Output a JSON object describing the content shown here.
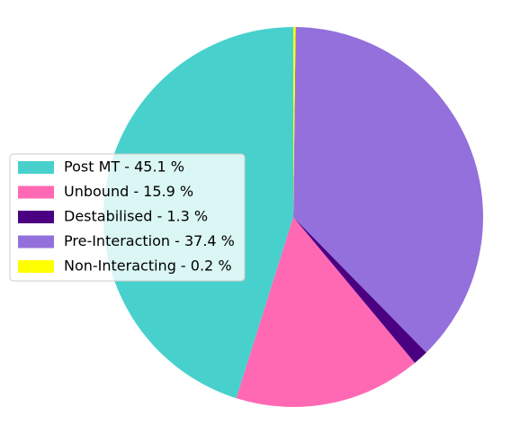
{
  "chart_data": {
    "type": "pie",
    "categories": [
      "Post MT - 45.1 %",
      "Unbound - 15.9 %",
      "Destabilised - 1.3 %",
      "Pre-Interaction - 37.4 %",
      "Non-Interacting - 0.2 %"
    ],
    "values": [
      45.1,
      15.9,
      1.3,
      37.4,
      0.2
    ],
    "colors": [
      "#48d1cc",
      "#ff69b4",
      "#4b0082",
      "#9370db",
      "#ffff00"
    ],
    "legend": "left"
  }
}
